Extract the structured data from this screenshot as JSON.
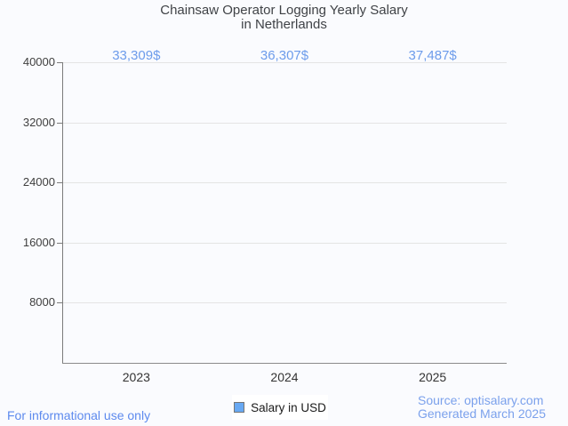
{
  "title": {
    "line1": "Chainsaw Operator Logging Yearly Salary",
    "line2": "in Netherlands"
  },
  "chart_data": {
    "type": "bar",
    "categories": [
      "2023",
      "2024",
      "2025"
    ],
    "values": [
      33309,
      36307,
      37487
    ],
    "value_labels": [
      "33,309$",
      "36,307$",
      "37,487$"
    ],
    "series": [
      {
        "name": "Salary in USD",
        "values": [
          33309,
          36307,
          37487
        ]
      }
    ],
    "title": "Chainsaw Operator Logging Yearly Salary in Netherlands",
    "xlabel": "",
    "ylabel": "",
    "ylim": [
      0,
      40000
    ],
    "yticks": [
      8000,
      16000,
      24000,
      32000,
      40000
    ],
    "grid": "horizontal",
    "legend_position": "bottom",
    "bar_gradient": [
      "#b0d8fa",
      "#ffffff",
      "#6d97e9"
    ]
  },
  "legend": {
    "label": "Salary in USD",
    "swatch_color": "#68a9f3"
  },
  "footer": {
    "left": "For informational use only",
    "source_line1": "Source: optisalary.com",
    "source_line2": "Generated March 2025"
  },
  "colors": {
    "background": "#fafbfe",
    "gridline": "#e4e4e4",
    "axis": "#7b7b7b",
    "value_label": "#6d9ceb",
    "title": "#404347",
    "footer_left": "#5d8aee",
    "footer_right": "#7ba1ec"
  }
}
